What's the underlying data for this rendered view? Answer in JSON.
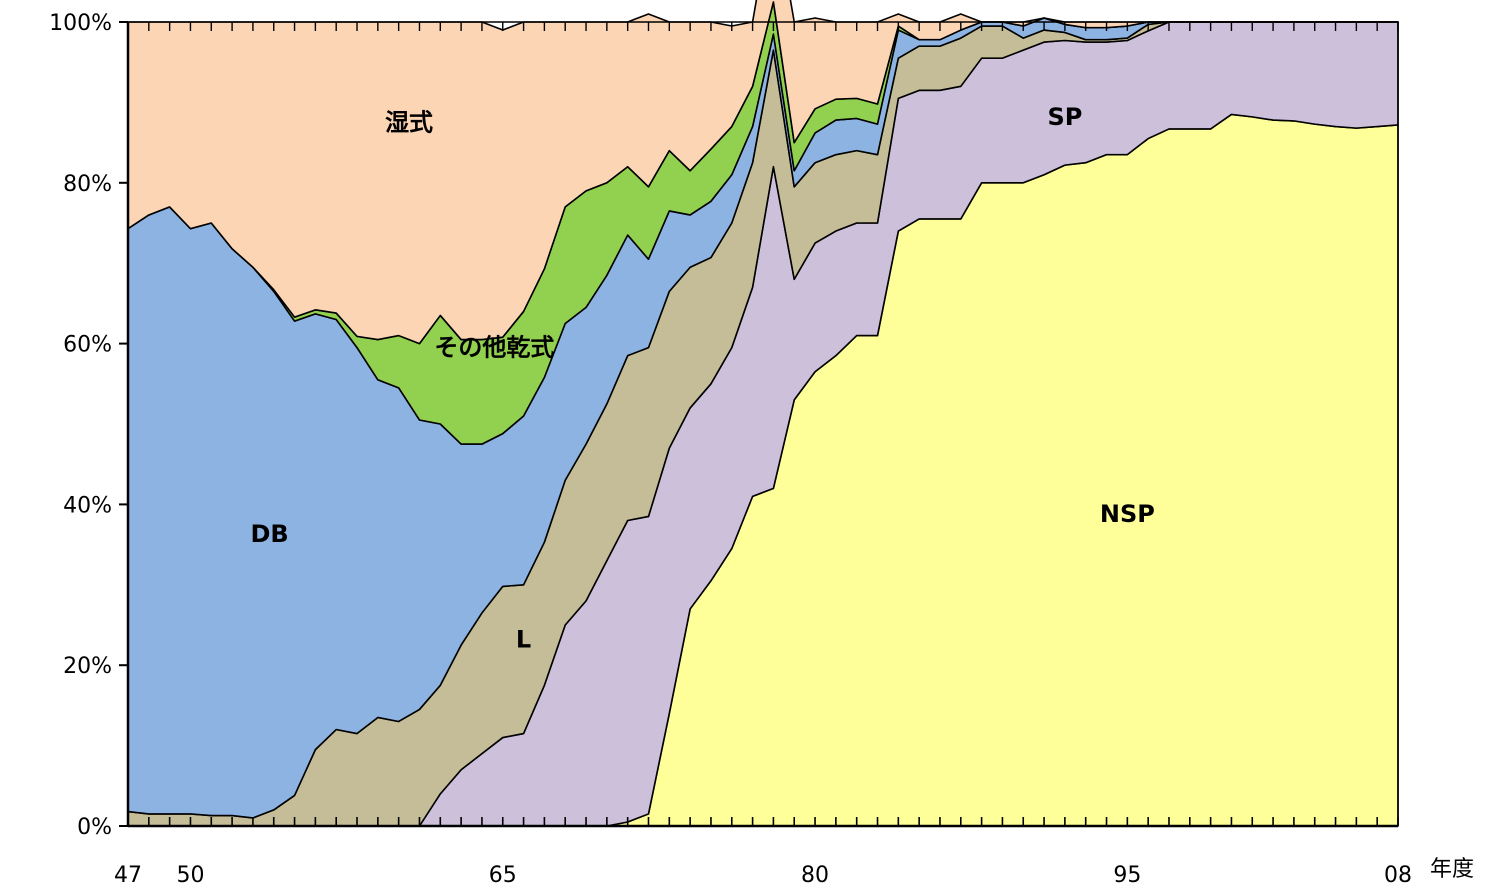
{
  "chart_data": {
    "type": "area",
    "stacked": "percent",
    "title": "",
    "xlabel": "年度",
    "ylabel": "",
    "x_tick_labels": [
      "47",
      "50",
      "65",
      "80",
      "95",
      "08"
    ],
    "y_tick_labels": [
      "0%",
      "20%",
      "40%",
      "60%",
      "80%",
      "100%"
    ],
    "ylim": [
      0,
      100
    ],
    "grid": false,
    "legend": "none",
    "x": [
      1947,
      1948,
      1949,
      1950,
      1951,
      1952,
      1953,
      1954,
      1955,
      1956,
      1957,
      1958,
      1959,
      1960,
      1961,
      1962,
      1963,
      1964,
      1965,
      1966,
      1967,
      1968,
      1969,
      1970,
      1971,
      1972,
      1973,
      1974,
      1975,
      1976,
      1977,
      1978,
      1979,
      1980,
      1981,
      1982,
      1983,
      1984,
      1985,
      1986,
      1987,
      1988,
      1989,
      1990,
      1991,
      1992,
      1993,
      1994,
      1995,
      1996,
      1997,
      1998,
      1999,
      2000,
      2001,
      2002,
      2003,
      2004,
      2005,
      2006,
      2007,
      2008
    ],
    "series": [
      {
        "name": "NSP",
        "color": "#FFFF99",
        "values": [
          0,
          0,
          0,
          0,
          0,
          0,
          0,
          0,
          0,
          0,
          0,
          0,
          0,
          0,
          0,
          0,
          0,
          0,
          0,
          0,
          0,
          0,
          0,
          0,
          0.5,
          1.5,
          14,
          27,
          30.5,
          34.5,
          41,
          42,
          53,
          56.5,
          58.5,
          61,
          61,
          74,
          75.5,
          75.5,
          75.5,
          80,
          80,
          80,
          81,
          82.2,
          82.5,
          83.5,
          83.5,
          85.5,
          86.7,
          86.7,
          86.7,
          88.5,
          88.2,
          87.8,
          87.7,
          87.3,
          87,
          86.8,
          87,
          87.2
        ]
      },
      {
        "name": "SP",
        "color": "#CCC0DA",
        "values": [
          0,
          0,
          0,
          0,
          0,
          0,
          0,
          0,
          0,
          0,
          0,
          0,
          0,
          0,
          0,
          4,
          7,
          9,
          11,
          11.5,
          17.5,
          25,
          28,
          33,
          37.5,
          37,
          33,
          25,
          24.5,
          25,
          26,
          40,
          15,
          16,
          15.5,
          14,
          14,
          16.5,
          16,
          16,
          16.5,
          15.5,
          15.5,
          16.5,
          16.5,
          15.5,
          15,
          14,
          14.2,
          13.4,
          13.3,
          13.3,
          13.3,
          11.5,
          11.8,
          12.2,
          12.3,
          12.7,
          13,
          13.2,
          13,
          12.8
        ]
      },
      {
        "name": "L",
        "color": "#C4BD97",
        "values": [
          1.8,
          1.5,
          1.5,
          1.5,
          1.3,
          1.3,
          1,
          2,
          3.8,
          9.5,
          12,
          11.5,
          13.5,
          13,
          14.5,
          13.5,
          15.5,
          17.5,
          18.8,
          18.5,
          17.8,
          18,
          19.5,
          19.5,
          20.5,
          21,
          19.5,
          17.5,
          15.7,
          15.5,
          15.5,
          14.5,
          11.5,
          10,
          9.5,
          9,
          8.5,
          5,
          5.5,
          5.5,
          6,
          4,
          4,
          1.5,
          1.5,
          1,
          0.3,
          0.3,
          0.3,
          0.8,
          0,
          0,
          0,
          0,
          0,
          0,
          0,
          0,
          0,
          0,
          0,
          0
        ]
      },
      {
        "name": "DB",
        "color": "#8DB3E2",
        "values": [
          72.5,
          74.5,
          75.5,
          72.8,
          73.7,
          70.5,
          68.5,
          64.5,
          59,
          54.2,
          51,
          48,
          42,
          41.5,
          36,
          32.5,
          25,
          21,
          19,
          21,
          20.5,
          19.5,
          17,
          16,
          15,
          11,
          10,
          6.5,
          7,
          6,
          4.5,
          2,
          2,
          3.7,
          4.3,
          4,
          3.8,
          3.5,
          0.8,
          0.8,
          1,
          0.5,
          0.5,
          1.5,
          1.5,
          1,
          1.5,
          1.5,
          1.5,
          0.3,
          0,
          0,
          0,
          0,
          0,
          0,
          0,
          0,
          0,
          0,
          0,
          0
        ]
      },
      {
        "name": "その他乾式",
        "color": "#92D050",
        "values": [
          0,
          0,
          0,
          0,
          0,
          0,
          0,
          0.2,
          0.5,
          0.5,
          0.8,
          1.4,
          5,
          6.5,
          9.5,
          13.5,
          13,
          13,
          12,
          13,
          13.5,
          14.5,
          14.5,
          11.5,
          8.5,
          9,
          7.5,
          5.5,
          6.5,
          6,
          5,
          4,
          3.5,
          3,
          2.6,
          2.5,
          2.5,
          0.5,
          0,
          0,
          0,
          0,
          0,
          0,
          0,
          0,
          0,
          0,
          0,
          0,
          0,
          0,
          0,
          0,
          0,
          0,
          0,
          0,
          0,
          0,
          0,
          0
        ]
      },
      {
        "name": "湿式",
        "color": "#FCD5B5",
        "values": [
          25.7,
          24,
          23,
          25.7,
          25,
          28.2,
          30.5,
          33.3,
          36.7,
          35.8,
          36.2,
          39.1,
          39.5,
          39,
          40,
          36.5,
          39.5,
          39.5,
          38.2,
          36,
          30.7,
          23,
          21,
          20,
          18,
          21.5,
          16,
          18.5,
          15.8,
          12.5,
          8,
          12.5,
          15,
          11.3,
          9.6,
          9.5,
          10.2,
          1.5,
          2.2,
          2.2,
          2,
          0,
          0,
          0.5,
          0,
          0.3,
          0.7,
          0.7,
          0.5,
          0,
          0,
          0,
          0,
          0,
          0,
          0,
          0,
          0,
          0,
          0,
          0,
          0
        ]
      }
    ],
    "annotations": [
      {
        "text": "湿式",
        "x": 1960.5,
        "y": 86.5
      },
      {
        "text": "その他乾式",
        "x": 1964.6,
        "y": 58.5
      },
      {
        "text": "DB",
        "x": 1953.8,
        "y": 35.3
      },
      {
        "text": "L",
        "x": 1966.0,
        "y": 22.2
      },
      {
        "text": "SP",
        "x": 1992.0,
        "y": 87.2
      },
      {
        "text": "NSP",
        "x": 1995.0,
        "y": 37.8
      }
    ]
  }
}
